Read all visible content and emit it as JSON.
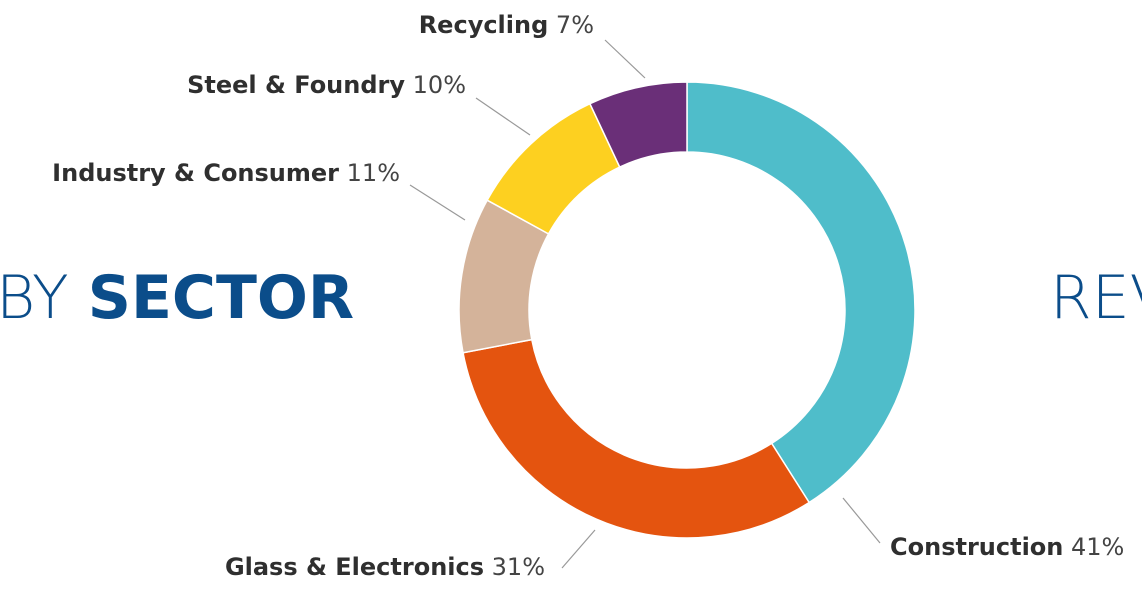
{
  "chart_data": {
    "type": "donut",
    "title": {
      "prefix": "BY",
      "emphasis": "SECTOR"
    },
    "next_title": "REV",
    "categories": [
      "Construction",
      "Glass & Electronics",
      "Industry & Consumer",
      "Steel & Foundry",
      "Recycling"
    ],
    "values": [
      41,
      31,
      11,
      10,
      7
    ],
    "value_labels": [
      "41%",
      "31%",
      "11%",
      "10%",
      "7%"
    ],
    "colors": [
      "#4fbdca",
      "#e4540f",
      "#d4b39a",
      "#fdd020",
      "#6a2f78"
    ]
  }
}
